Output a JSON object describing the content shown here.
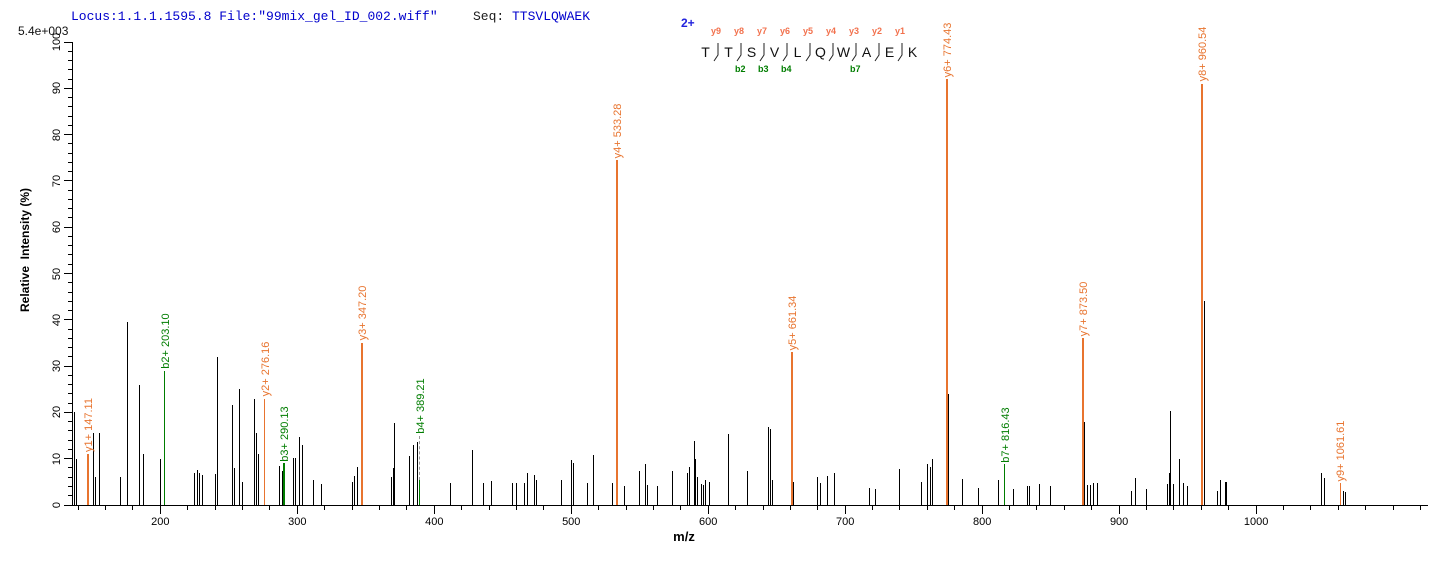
{
  "header": {
    "locus_file": "Locus:1.1.1.1595.8 File:\"99mix_gel_ID_002.wiff\"",
    "seq_label": "Seq:",
    "seq_value": "TTSVLQWAEK",
    "scale_note": "5.4e+003"
  },
  "ladder": {
    "charge": "2+",
    "residues": [
      "T",
      "T",
      "S",
      "V",
      "L",
      "Q",
      "W",
      "A",
      "E",
      "K"
    ],
    "gaps": [
      {
        "y": "y9",
        "b": ""
      },
      {
        "y": "y8",
        "b": "b2"
      },
      {
        "y": "y7",
        "b": "b3"
      },
      {
        "y": "y6",
        "b": "b4"
      },
      {
        "y": "y5",
        "b": ""
      },
      {
        "y": "y4",
        "b": ""
      },
      {
        "y": "y3",
        "b": "b7"
      },
      {
        "y": "y2",
        "b": ""
      },
      {
        "y": "y1",
        "b": ""
      }
    ]
  },
  "axes": {
    "x_label": "m/z",
    "y_label": "Relative  Intensity (%)",
    "x_range": [
      135.5,
      1125.5
    ],
    "y_range": [
      0,
      100
    ],
    "x_major_ticks": [
      200,
      300,
      400,
      500,
      600,
      700,
      800,
      900,
      1000
    ],
    "x_minor_step": 20,
    "y_major_ticks": [
      0,
      10,
      20,
      30,
      40,
      50,
      60,
      70,
      80,
      90,
      100
    ],
    "y_minor_step": 2
  },
  "colors": {
    "y_ion": "#E8742F",
    "b_ion": "#007D00",
    "peak": "#000000",
    "header_blue": "#0000CC",
    "charge_blue": "#2222DD",
    "ladder_y_label": "#F2714D",
    "ladder_b_label": "#007D00"
  },
  "chart_data": {
    "type": "bar",
    "title": "MS/MS fragment spectrum of peptide TTSVLQWAEK (2+)",
    "xlabel": "m/z",
    "ylabel": "Relative  Intensity (%)",
    "xlim": [
      135.5,
      1125.5
    ],
    "ylim": [
      0,
      100
    ],
    "max_intensity_counts": "5.4e+003",
    "fragment_ions": [
      {
        "label": "y1+ 147.11",
        "mz": 147.11,
        "intensity": 11,
        "series": "y"
      },
      {
        "label": "b2+ 203.10",
        "mz": 203.1,
        "intensity": 29,
        "series": "b"
      },
      {
        "label": "y2+ 276.16",
        "mz": 276.16,
        "intensity": 23,
        "series": "y"
      },
      {
        "label": "b3+ 290.13",
        "mz": 290.13,
        "intensity": 9,
        "series": "b"
      },
      {
        "label": "y3+ 347.20",
        "mz": 347.2,
        "intensity": 35,
        "series": "y"
      },
      {
        "label": "b4+ 389.21",
        "mz": 389.21,
        "intensity": 5.4,
        "series": "b",
        "leader_to": 15
      },
      {
        "label": "y4+ 533.28",
        "mz": 533.28,
        "intensity": 74.5,
        "series": "y"
      },
      {
        "label": "y5+ 661.34",
        "mz": 661.34,
        "intensity": 33,
        "series": "y"
      },
      {
        "label": "y6+ 774.43",
        "mz": 774.43,
        "intensity": 92,
        "series": "y"
      },
      {
        "label": "b7+ 816.43",
        "mz": 816.43,
        "intensity": 8.8,
        "series": "b"
      },
      {
        "label": "y7+ 873.50",
        "mz": 873.5,
        "intensity": 36,
        "series": "y"
      },
      {
        "label": "y8+ 960.54",
        "mz": 960.54,
        "intensity": 91,
        "series": "y"
      },
      {
        "label": "y9+ 1061.61",
        "mz": 1061.61,
        "intensity": 4.7,
        "series": "y"
      }
    ],
    "peaks": [
      [
        137,
        20
      ],
      [
        139,
        10
      ],
      [
        151.5,
        15.5
      ],
      [
        153,
        6
      ],
      [
        155.5,
        15.5
      ],
      [
        171,
        6
      ],
      [
        176,
        39.5
      ],
      [
        185,
        26
      ],
      [
        188,
        11
      ],
      [
        200,
        10
      ],
      [
        225,
        7
      ],
      [
        227,
        7.5
      ],
      [
        228.5,
        7
      ],
      [
        230.5,
        6.5
      ],
      [
        240,
        6.7
      ],
      [
        242,
        32
      ],
      [
        253,
        21.5
      ],
      [
        253.8,
        8
      ],
      [
        258,
        25
      ],
      [
        260,
        5
      ],
      [
        269,
        23
      ],
      [
        270.5,
        15.5
      ],
      [
        272,
        11
      ],
      [
        287,
        8.5
      ],
      [
        289,
        7.4
      ],
      [
        297,
        10.2
      ],
      [
        299,
        10.2
      ],
      [
        301.5,
        14.7
      ],
      [
        304,
        13
      ],
      [
        312,
        5.4
      ],
      [
        318,
        4.5
      ],
      [
        340,
        5
      ],
      [
        342,
        6.3
      ],
      [
        344,
        8.2
      ],
      [
        369,
        6
      ],
      [
        370,
        8
      ],
      [
        371,
        17.7
      ],
      [
        382,
        10.6
      ],
      [
        385,
        13
      ],
      [
        388,
        13.6
      ],
      [
        412,
        4.7
      ],
      [
        428,
        11.9
      ],
      [
        436,
        4.7
      ],
      [
        442,
        5.2
      ],
      [
        457,
        4.7
      ],
      [
        460,
        4.7
      ],
      [
        466,
        4.7
      ],
      [
        468,
        7
      ],
      [
        473,
        6.5
      ],
      [
        474.5,
        5.4
      ],
      [
        493,
        5.4
      ],
      [
        500,
        9.7
      ],
      [
        501.5,
        9
      ],
      [
        512,
        4.7
      ],
      [
        516,
        10.8
      ],
      [
        530,
        4.7
      ],
      [
        539,
        4
      ],
      [
        550,
        7.3
      ],
      [
        554,
        8.8
      ],
      [
        556,
        4.3
      ],
      [
        563,
        4
      ],
      [
        574,
        7.3
      ],
      [
        585,
        7
      ],
      [
        586.5,
        8.2
      ],
      [
        590,
        13.8
      ],
      [
        591,
        10
      ],
      [
        592,
        6
      ],
      [
        595,
        4.5
      ],
      [
        596.5,
        4.3
      ],
      [
        598,
        5.4
      ],
      [
        601,
        5
      ],
      [
        615,
        15.3
      ],
      [
        629,
        7.3
      ],
      [
        644,
        16.8
      ],
      [
        645.5,
        16.4
      ],
      [
        647,
        5.4
      ],
      [
        662,
        5
      ],
      [
        680,
        6
      ],
      [
        682,
        4.7
      ],
      [
        687,
        6.3
      ],
      [
        692,
        7
      ],
      [
        718,
        3.6
      ],
      [
        722,
        3.4
      ],
      [
        740,
        7.8
      ],
      [
        756,
        5
      ],
      [
        760,
        8.8
      ],
      [
        762,
        8.2
      ],
      [
        763.5,
        10
      ],
      [
        775.5,
        24
      ],
      [
        786,
        5.6
      ],
      [
        797,
        3.6
      ],
      [
        812,
        5.4
      ],
      [
        823,
        3.5
      ],
      [
        833,
        4
      ],
      [
        834.5,
        4
      ],
      [
        842,
        4.5
      ],
      [
        850,
        4
      ],
      [
        875,
        18
      ],
      [
        877,
        4.3
      ],
      [
        879,
        4.3
      ],
      [
        881,
        4.7
      ],
      [
        884,
        4.7
      ],
      [
        909,
        3
      ],
      [
        912,
        5.8
      ],
      [
        920,
        3.5
      ],
      [
        935,
        4.5
      ],
      [
        936.5,
        7
      ],
      [
        937.5,
        20.4
      ],
      [
        940,
        4.5
      ],
      [
        944,
        10
      ],
      [
        947,
        4.7
      ],
      [
        950,
        4
      ],
      [
        962,
        44
      ],
      [
        972,
        3
      ],
      [
        974,
        5.4
      ],
      [
        977.5,
        5
      ],
      [
        978.5,
        5
      ],
      [
        1048,
        7
      ],
      [
        1050,
        5.8
      ],
      [
        1064,
        3
      ],
      [
        1065.5,
        2.8
      ]
    ]
  }
}
